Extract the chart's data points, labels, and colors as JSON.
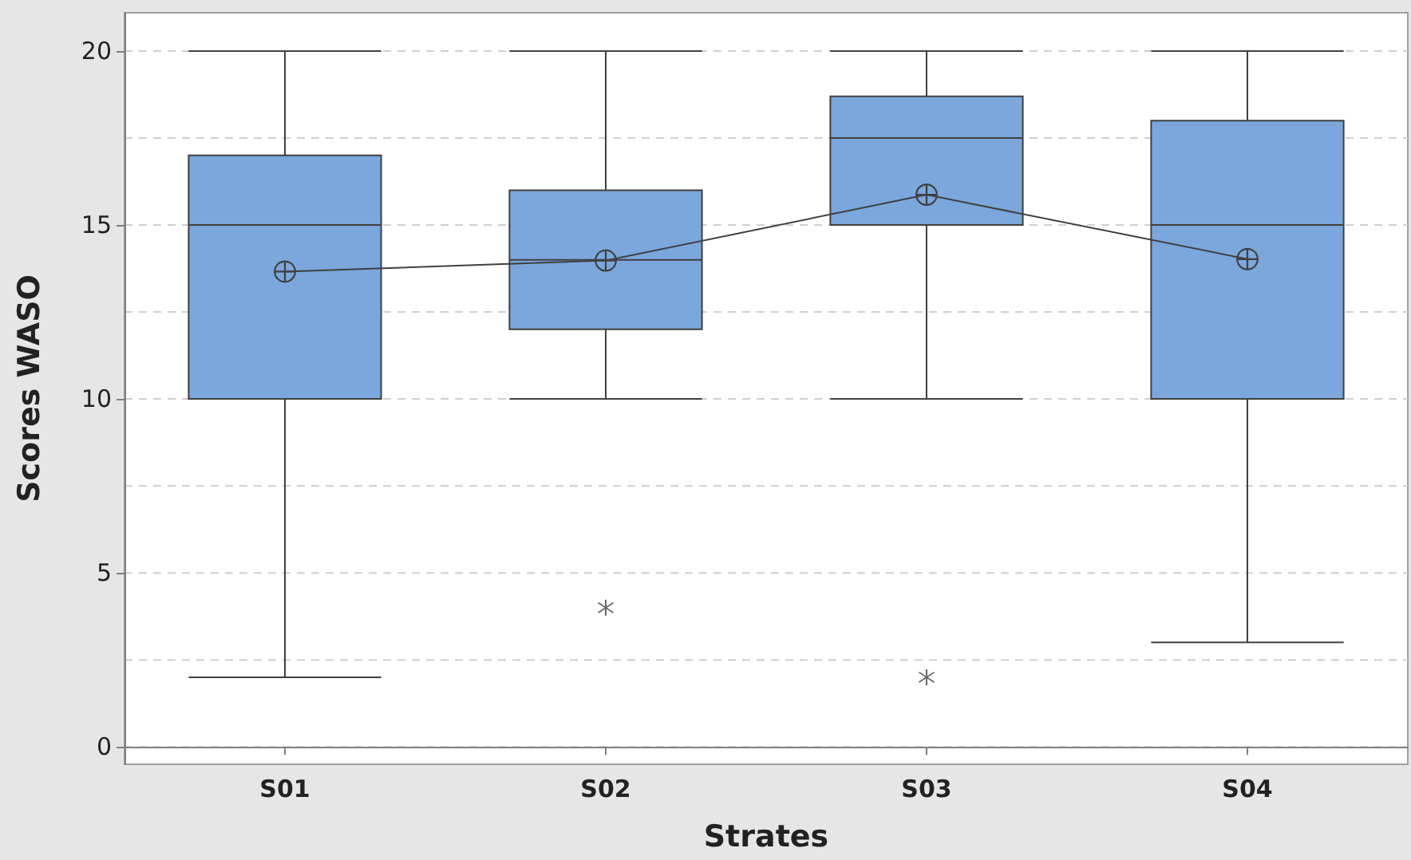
{
  "chart_data": {
    "type": "box",
    "xlabel": "Strates",
    "ylabel": "Scores WASO",
    "categories": [
      "S01",
      "S02",
      "S03",
      "S04"
    ],
    "ylim": [
      -0.5,
      21.1
    ],
    "yticks": [
      0,
      {
        "value": 2.5,
        "label": null
      },
      5,
      {
        "value": 7.5,
        "label": null
      },
      10,
      {
        "value": 12.5,
        "label": null
      },
      15,
      {
        "value": 17.5,
        "label": null
      },
      20
    ],
    "grid": "y",
    "series": [
      {
        "color": "#7ba7dc",
        "boxes": [
          {
            "low": 2,
            "q1": 10,
            "median": 15,
            "q3": 17,
            "high": 20
          },
          {
            "low": 10,
            "q1": 12,
            "median": 14,
            "q3": 16,
            "high": 20,
            "outliers": [
              4
            ]
          },
          {
            "low": 10,
            "q1": 15,
            "median": 17.5,
            "q3": 18.7,
            "high": 20,
            "outliers": [
              2
            ]
          },
          {
            "low": 3,
            "q1": 10,
            "median": 15,
            "q3": 18,
            "high": 20
          }
        ]
      },
      {
        "type": "line",
        "color": "#404040",
        "marker": "circle",
        "line_style": "solid",
        "x": [
          "S01",
          "S02",
          "S03",
          "S04"
        ],
        "values": [
          13.66,
          13.98,
          15.87,
          14.02
        ]
      }
    ]
  }
}
